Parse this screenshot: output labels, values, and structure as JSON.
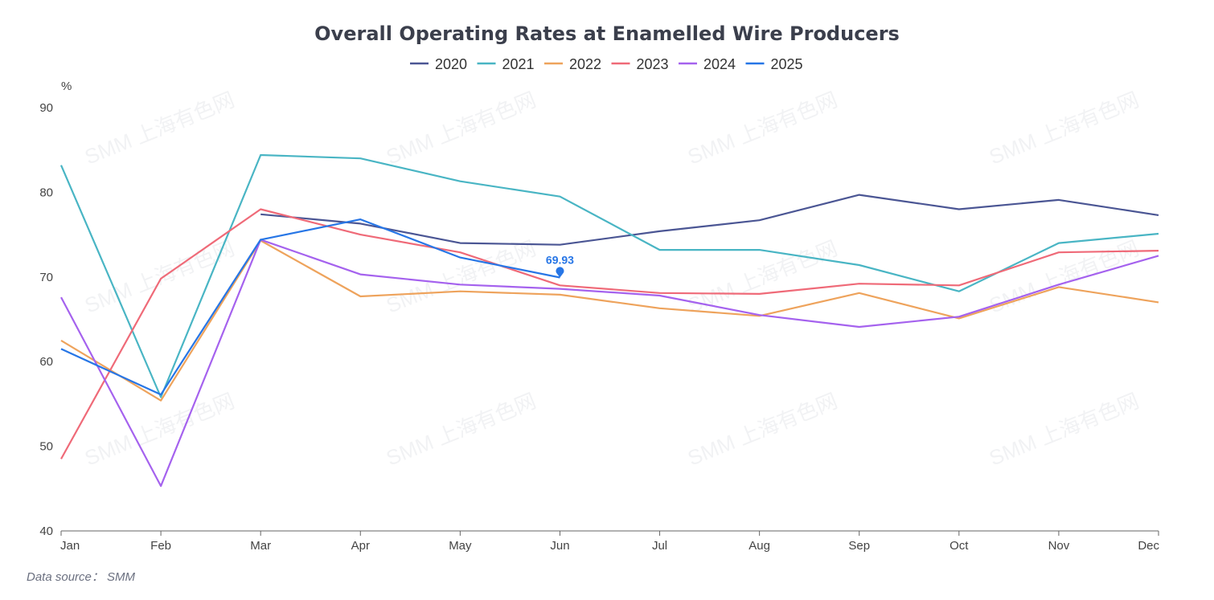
{
  "chart_data": {
    "type": "line",
    "title": "Overall Operating Rates at Enamelled Wire Producers",
    "ylabel": "%",
    "xlabel": "",
    "ylim": [
      40,
      90
    ],
    "yticks": [
      40,
      50,
      60,
      70,
      80,
      90
    ],
    "grid": false,
    "legend_position": "top-center",
    "categories": [
      "Jan",
      "Feb",
      "Mar",
      "Apr",
      "May",
      "Jun",
      "Jul",
      "Aug",
      "Sep",
      "Oct",
      "Nov",
      "Dec"
    ],
    "series": [
      {
        "name": "2020",
        "color": "#4b5694",
        "values": [
          null,
          null,
          77.4,
          76.3,
          74.0,
          73.8,
          75.4,
          76.7,
          79.7,
          78.0,
          79.1,
          77.3
        ]
      },
      {
        "name": "2021",
        "color": "#49b5c4",
        "values": [
          83.2,
          55.8,
          84.4,
          84.0,
          81.3,
          79.5,
          73.2,
          73.2,
          71.4,
          68.3,
          74.0,
          75.1
        ]
      },
      {
        "name": "2022",
        "color": "#eea35c",
        "values": [
          62.5,
          55.4,
          74.3,
          67.7,
          68.3,
          67.9,
          66.3,
          65.4,
          68.1,
          65.1,
          68.8,
          67.0
        ]
      },
      {
        "name": "2023",
        "color": "#ef6a78",
        "values": [
          48.5,
          69.8,
          78.0,
          75.0,
          72.9,
          69.0,
          68.1,
          68.0,
          69.2,
          69.0,
          72.9,
          73.1
        ]
      },
      {
        "name": "2024",
        "color": "#a562ee",
        "values": [
          67.6,
          45.3,
          74.4,
          70.3,
          69.1,
          68.6,
          67.8,
          65.5,
          64.1,
          65.3,
          69.1,
          72.5
        ]
      },
      {
        "name": "2025",
        "color": "#2776e6",
        "values": [
          61.5,
          56.1,
          74.4,
          76.8,
          72.3,
          69.93,
          null,
          null,
          null,
          null,
          null,
          null
        ]
      }
    ],
    "annotations": [
      {
        "series": "2025",
        "category": "Jun",
        "value": 69.93,
        "text": "69.93"
      }
    ]
  },
  "source_text": "Data source： SMM",
  "watermark_text": "SMM 上海有色网"
}
